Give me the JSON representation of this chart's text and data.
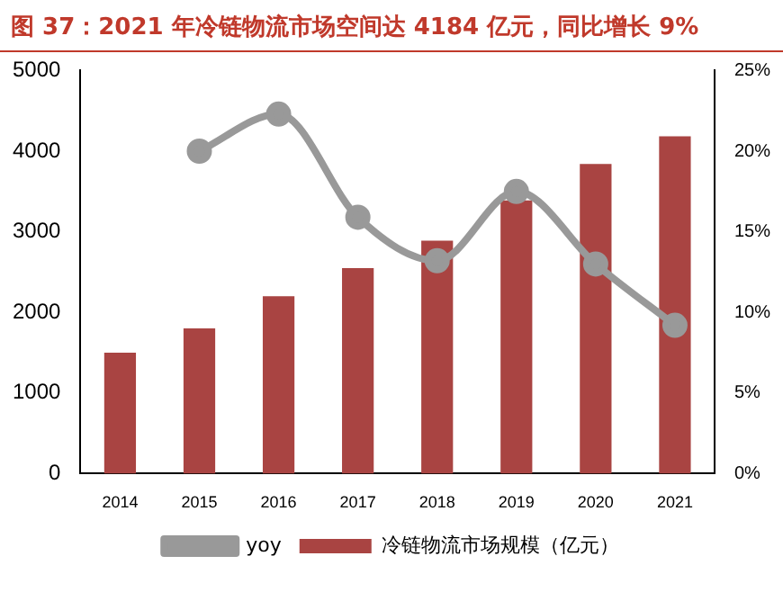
{
  "chart_data": {
    "type": "bar",
    "title": "图 37：2021 年冷链物流市场空间达 4184 亿元，同比增长 9%",
    "categories": [
      "2014",
      "2015",
      "2016",
      "2017",
      "2018",
      "2019",
      "2020",
      "2021"
    ],
    "series": [
      {
        "name": "冷链物流市场规模（亿元）",
        "color": "#a94442",
        "values": [
          1500,
          1800,
          2200,
          2550,
          2890,
          3390,
          3840,
          4184
        ]
      },
      {
        "name": "yoy",
        "type": "line",
        "axis": "y2",
        "color": "#999999",
        "values": [
          null,
          20.0,
          22.3,
          15.9,
          13.2,
          17.5,
          13.0,
          9.2
        ]
      }
    ],
    "ylim": [
      0,
      5000
    ],
    "yticks": [
      0,
      1000,
      2000,
      3000,
      4000,
      5000
    ],
    "y2lim": [
      0,
      25
    ],
    "y2ticks": [
      {
        "value": 0,
        "label": "0%"
      },
      {
        "value": 5,
        "label": "5%"
      },
      {
        "value": 10,
        "label": "10%"
      },
      {
        "value": 15,
        "label": "15%"
      },
      {
        "value": 20,
        "label": "20%"
      },
      {
        "value": 25,
        "label": "25%"
      }
    ],
    "legend": "bottom",
    "grid": false,
    "marker": "circle"
  }
}
